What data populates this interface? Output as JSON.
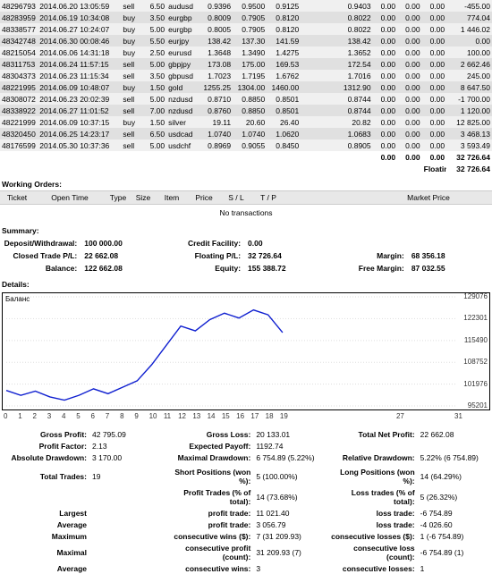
{
  "trades": [
    {
      "ticket": "48296793",
      "time": "2014.06.20 13:05:59",
      "type": "sell",
      "size": "6.50",
      "item": "audusd",
      "p1": "0.9396",
      "p2": "0.9500",
      "p3": "0.9125",
      "p5": "0.9403",
      "z1": "0.00",
      "z2": "0.00",
      "z3": "0.00",
      "pl": "-455.00"
    },
    {
      "ticket": "48283959",
      "time": "2014.06.19 10:34:08",
      "type": "buy",
      "size": "3.50",
      "item": "eurgbp",
      "p1": "0.8009",
      "p2": "0.7905",
      "p3": "0.8120",
      "p5": "0.8022",
      "z1": "0.00",
      "z2": "0.00",
      "z3": "0.00",
      "pl": "774.04"
    },
    {
      "ticket": "48338577",
      "time": "2014.06.27 10:24:07",
      "type": "buy",
      "size": "5.00",
      "item": "eurgbp",
      "p1": "0.8005",
      "p2": "0.7905",
      "p3": "0.8120",
      "p5": "0.8022",
      "z1": "0.00",
      "z2": "0.00",
      "z3": "0.00",
      "pl": "1 446.02"
    },
    {
      "ticket": "48342748",
      "time": "2014.06.30 00:08:46",
      "type": "buy",
      "size": "5.50",
      "item": "eurjpy",
      "p1": "138.42",
      "p2": "137.30",
      "p3": "141.59",
      "p5": "138.42",
      "z1": "0.00",
      "z2": "0.00",
      "z3": "0.00",
      "pl": "0.00"
    },
    {
      "ticket": "48215054",
      "time": "2014.06.06 14:31:18",
      "type": "buy",
      "size": "2.50",
      "item": "eurusd",
      "p1": "1.3648",
      "p2": "1.3490",
      "p3": "1.4275",
      "p5": "1.3652",
      "z1": "0.00",
      "z2": "0.00",
      "z3": "0.00",
      "pl": "100.00"
    },
    {
      "ticket": "48311753",
      "time": "2014.06.24 11:57:15",
      "type": "sell",
      "size": "5.00",
      "item": "gbpjpy",
      "p1": "173.08",
      "p2": "175.00",
      "p3": "169.53",
      "p5": "172.54",
      "z1": "0.00",
      "z2": "0.00",
      "z3": "0.00",
      "pl": "2 662.46"
    },
    {
      "ticket": "48304373",
      "time": "2014.06.23 11:15:34",
      "type": "sell",
      "size": "3.50",
      "item": "gbpusd",
      "p1": "1.7023",
      "p2": "1.7195",
      "p3": "1.6762",
      "p5": "1.7016",
      "z1": "0.00",
      "z2": "0.00",
      "z3": "0.00",
      "pl": "245.00"
    },
    {
      "ticket": "48221995",
      "time": "2014.06.09 10:48:07",
      "type": "buy",
      "size": "1.50",
      "item": "gold",
      "p1": "1255.25",
      "p2": "1304.00",
      "p3": "1460.00",
      "p5": "1312.90",
      "z1": "0.00",
      "z2": "0.00",
      "z3": "0.00",
      "pl": "8 647.50"
    },
    {
      "ticket": "48308072",
      "time": "2014.06.23 20:02:39",
      "type": "sell",
      "size": "5.00",
      "item": "nzdusd",
      "p1": "0.8710",
      "p2": "0.8850",
      "p3": "0.8501",
      "p5": "0.8744",
      "z1": "0.00",
      "z2": "0.00",
      "z3": "0.00",
      "pl": "-1 700.00"
    },
    {
      "ticket": "48338922",
      "time": "2014.06.27 11:01:52",
      "type": "sell",
      "size": "7.00",
      "item": "nzdusd",
      "p1": "0.8760",
      "p2": "0.8850",
      "p3": "0.8501",
      "p5": "0.8744",
      "z1": "0.00",
      "z2": "0.00",
      "z3": "0.00",
      "pl": "1 120.00"
    },
    {
      "ticket": "48221999",
      "time": "2014.06.09 10:37:15",
      "type": "buy",
      "size": "1.50",
      "item": "silver",
      "p1": "19.11",
      "p2": "20.60",
      "p3": "26.40",
      "p5": "20.82",
      "z1": "0.00",
      "z2": "0.00",
      "z3": "0.00",
      "pl": "12 825.00"
    },
    {
      "ticket": "48320450",
      "time": "2014.06.25 14:23:17",
      "type": "sell",
      "size": "6.50",
      "item": "usdcad",
      "p1": "1.0740",
      "p2": "1.0740",
      "p3": "1.0620",
      "p5": "1.0683",
      "z1": "0.00",
      "z2": "0.00",
      "z3": "0.00",
      "pl": "3 468.13"
    },
    {
      "ticket": "48176599",
      "time": "2014.05.30 10:37:36",
      "type": "sell",
      "size": "5.00",
      "item": "usdchf",
      "p1": "0.8969",
      "p2": "0.9055",
      "p3": "0.8450",
      "p5": "0.8905",
      "z1": "0.00",
      "z2": "0.00",
      "z3": "0.00",
      "pl": "3 593.49"
    }
  ],
  "trades_totals": {
    "z1": "0.00",
    "z2": "0.00",
    "z3": "0.00",
    "pl": "32 726.64"
  },
  "floating_pl": {
    "label": "Floating P/L:",
    "value": "32 726.64"
  },
  "sections": {
    "working": "Working Orders:",
    "summary": "Summary:",
    "details": "Details:"
  },
  "working_headers": [
    "Ticket",
    "Open Time",
    "Type",
    "Size",
    "Item",
    "Price",
    "S / L",
    "T / P",
    "Market Price"
  ],
  "no_tx": "No transactions",
  "summary": [
    [
      {
        "l": "Deposit/Withdrawal:",
        "v": "100 000.00"
      },
      {
        "l": "Credit Facility:",
        "v": "0.00"
      },
      {
        "l": "",
        "v": ""
      }
    ],
    [
      {
        "l": "Closed Trade P/L:",
        "v": "22 662.08"
      },
      {
        "l": "Floating P/L:",
        "v": "32 726.64"
      },
      {
        "l": "Margin:",
        "v": "68 356.18"
      }
    ],
    [
      {
        "l": "Balance:",
        "v": "122 662.08"
      },
      {
        "l": "Equity:",
        "v": "155 388.72"
      },
      {
        "l": "Free Margin:",
        "v": "87 032.55"
      }
    ]
  ],
  "chart": {
    "title": "Баланс",
    "yticks": [
      {
        "v": 129076,
        "label": "129076"
      },
      {
        "v": 122301,
        "label": "122301"
      },
      {
        "v": 115490,
        "label": "115490"
      },
      {
        "v": 108752,
        "label": "108752"
      },
      {
        "v": 101976,
        "label": "101976"
      },
      {
        "v": 95201,
        "label": "95201"
      }
    ],
    "ymin": 95201,
    "ymax": 129076,
    "xticks": [
      0,
      1,
      2,
      3,
      4,
      5,
      6,
      7,
      8,
      9,
      10,
      11,
      12,
      13,
      14,
      15,
      16,
      17,
      18,
      19,
      27,
      31
    ],
    "xmax": 31,
    "points": [
      [
        0,
        100000
      ],
      [
        1,
        98500
      ],
      [
        2,
        99800
      ],
      [
        3,
        98000
      ],
      [
        4,
        97000
      ],
      [
        5,
        98500
      ],
      [
        6,
        100500
      ],
      [
        7,
        99000
      ],
      [
        8,
        101000
      ],
      [
        9,
        103000
      ],
      [
        10,
        108000
      ],
      [
        11,
        114000
      ],
      [
        12,
        120000
      ],
      [
        13,
        118500
      ],
      [
        14,
        122000
      ],
      [
        15,
        124000
      ],
      [
        16,
        122500
      ],
      [
        17,
        125000
      ],
      [
        18,
        123500
      ],
      [
        19,
        118000
      ]
    ],
    "line_color": "#1020d0"
  },
  "stats": [
    [
      {
        "l": "Gross Profit:",
        "v": "42 795.09"
      },
      {
        "l": "Gross Loss:",
        "v": "20 133.01"
      },
      {
        "l": "Total Net Profit:",
        "v": "22 662.08"
      }
    ],
    [
      {
        "l": "Profit Factor:",
        "v": "2.13"
      },
      {
        "l": "Expected Payoff:",
        "v": "1192.74"
      },
      {
        "l": "",
        "v": ""
      }
    ],
    [
      {
        "l": "Absolute Drawdown:",
        "v": "3 170.00"
      },
      {
        "l": "Maximal Drawdown:",
        "v": "6 754.89 (5.22%)"
      },
      {
        "l": "Relative Drawdown:",
        "v": "5.22% (6 754.89)"
      }
    ],
    [
      {
        "l": "",
        "v": ""
      },
      {
        "l": "",
        "v": ""
      },
      {
        "l": "",
        "v": ""
      }
    ],
    [
      {
        "l": "Total Trades:",
        "v": "19"
      },
      {
        "l": "Short Positions (won %):",
        "v": "5 (100.00%)"
      },
      {
        "l": "Long Positions (won %):",
        "v": "14 (64.29%)"
      }
    ],
    [
      {
        "l": "",
        "v": ""
      },
      {
        "l": "Profit Trades (% of total):",
        "v": "14 (73.68%)"
      },
      {
        "l": "Loss trades (% of total):",
        "v": "5 (26.32%)"
      }
    ],
    [
      {
        "l": "Largest",
        "v": ""
      },
      {
        "l": "profit trade:",
        "v": "11 021.40"
      },
      {
        "l": "loss trade:",
        "v": "-6 754.89"
      }
    ],
    [
      {
        "l": "Average",
        "v": ""
      },
      {
        "l": "profit trade:",
        "v": "3 056.79"
      },
      {
        "l": "loss trade:",
        "v": "-4 026.60"
      }
    ],
    [
      {
        "l": "Maximum",
        "v": ""
      },
      {
        "l": "consecutive wins ($):",
        "v": "7 (31 209.93)"
      },
      {
        "l": "consecutive losses ($):",
        "v": "1 (-6 754.89)"
      }
    ],
    [
      {
        "l": "Maximal",
        "v": ""
      },
      {
        "l": "consecutive profit (count):",
        "v": "31 209.93 (7)"
      },
      {
        "l": "consecutive loss (count):",
        "v": "-6 754.89 (1)"
      }
    ],
    [
      {
        "l": "Average",
        "v": ""
      },
      {
        "l": "consecutive wins:",
        "v": "3"
      },
      {
        "l": "consecutive losses:",
        "v": "1"
      }
    ]
  ]
}
